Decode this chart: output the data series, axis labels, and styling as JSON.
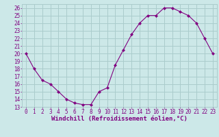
{
  "x": [
    0,
    1,
    2,
    3,
    4,
    5,
    6,
    7,
    8,
    9,
    10,
    11,
    12,
    13,
    14,
    15,
    16,
    17,
    18,
    19,
    20,
    21,
    22,
    23
  ],
  "y": [
    20,
    18,
    16.5,
    16,
    15,
    14,
    13.5,
    13.3,
    13.3,
    15,
    15.5,
    18.5,
    20.5,
    22.5,
    24,
    25,
    25,
    26,
    26,
    25.5,
    25,
    24,
    22,
    20
  ],
  "xlabel": "Windchill (Refroidissement éolien,°C)",
  "ylim": [
    13,
    26.5
  ],
  "xlim": [
    -0.5,
    23.5
  ],
  "yticks": [
    13,
    14,
    15,
    16,
    17,
    18,
    19,
    20,
    21,
    22,
    23,
    24,
    25,
    26
  ],
  "xticks": [
    0,
    1,
    2,
    3,
    4,
    5,
    6,
    7,
    8,
    9,
    10,
    11,
    12,
    13,
    14,
    15,
    16,
    17,
    18,
    19,
    20,
    21,
    22,
    23
  ],
  "line_color": "#800080",
  "marker_color": "#800080",
  "bg_color": "#cce8e8",
  "grid_color": "#aacccc",
  "font_color": "#800080",
  "tick_fontsize": 5.5,
  "xlabel_fontsize": 6.5
}
